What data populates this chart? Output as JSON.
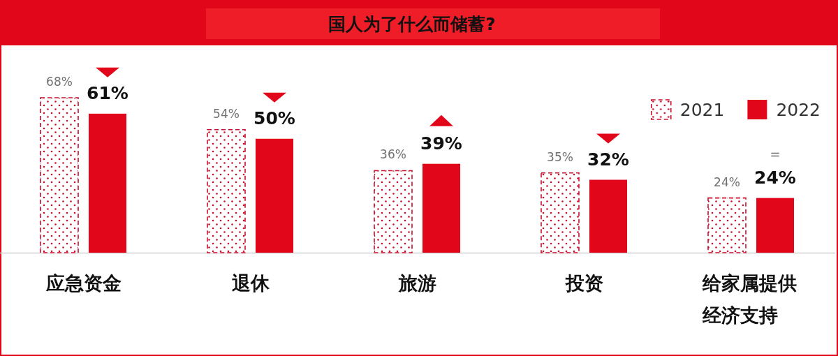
{
  "chart_data": {
    "type": "bar",
    "title": "国人为了什么而储蓄?",
    "categories": [
      "应急资金",
      "退休",
      "旅游",
      "投资",
      "给家属提供经济支持"
    ],
    "series": [
      {
        "name": "2021",
        "color": "#c8102e",
        "values": [
          68,
          54,
          36,
          35,
          24
        ],
        "value_labels": [
          "68%",
          "54%",
          "36%",
          "35%",
          "24%"
        ]
      },
      {
        "name": "2022",
        "color": "#e2061b",
        "values": [
          61,
          50,
          39,
          32,
          24
        ],
        "value_labels": [
          "61%",
          "50%",
          "39%",
          "32%",
          "24%"
        ]
      }
    ],
    "annotations": [
      "="
    ],
    "legend": "top right"
  }
}
